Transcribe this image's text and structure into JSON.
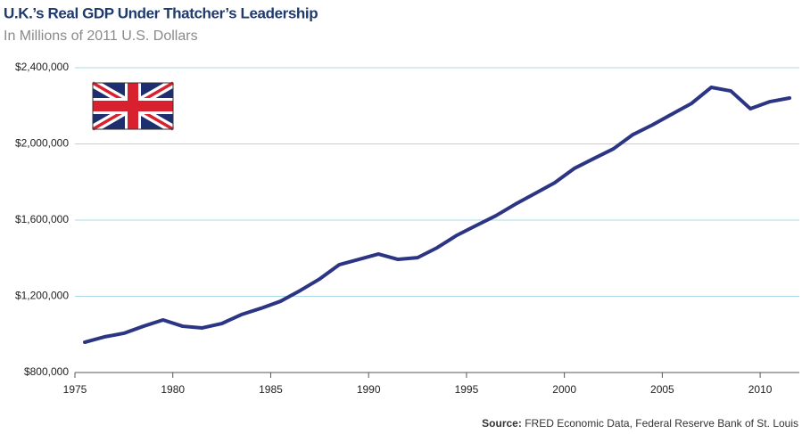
{
  "chart_data": {
    "type": "line",
    "title": "U.K.’s Real GDP Under Thatcher’s Leadership",
    "subtitle": "In Millions of 2011 U.S. Dollars",
    "source_label": "Source:",
    "source": "FRED Economic Data, Federal Reserve Bank of St. Louis",
    "x": [
      1975.5,
      1976.5,
      1977.5,
      1978.5,
      1979.5,
      1980.5,
      1981.5,
      1982.5,
      1983.5,
      1984.5,
      1985.5,
      1986.5,
      1987.5,
      1988.5,
      1989.5,
      1990.5,
      1991.5,
      1992.5,
      1993.5,
      1994.5,
      1995.5,
      1996.5,
      1997.5,
      1998.5,
      1999.5,
      2000.5,
      2001.5,
      2002.5,
      2003.5,
      2004.5,
      2005.5,
      2006.5,
      2007.5,
      2008.5,
      2009.5,
      2010.5,
      2011.5
    ],
    "series": [
      {
        "color": "#2b3584",
        "values": [
          959000,
          987000,
          1006000,
          1043000,
          1076000,
          1043000,
          1034000,
          1057000,
          1104000,
          1137000,
          1174000,
          1230000,
          1291000,
          1366000,
          1394000,
          1422000,
          1394000,
          1403000,
          1455000,
          1520000,
          1572000,
          1623000,
          1684000,
          1740000,
          1796000,
          1871000,
          1923000,
          1974000,
          2049000,
          2100000,
          2157000,
          2213000,
          2297000,
          2278000,
          2185000,
          2222000,
          2241000
        ]
      }
    ],
    "xlim": [
      1975,
      2012
    ],
    "xticks": [
      1975,
      1980,
      1985,
      1990,
      1995,
      2000,
      2005,
      2010
    ],
    "ylim": [
      800000,
      2400000
    ],
    "yticks": [
      {
        "value": 800000,
        "label": "$800,000"
      },
      {
        "value": 1200000,
        "label": "$1,200,000"
      },
      {
        "value": 1600000,
        "label": "$1,600,000"
      },
      {
        "value": 2000000,
        "label": "$2,000,000"
      },
      {
        "value": 2400000,
        "label": "$2,400,000"
      }
    ],
    "grid": true,
    "grid_color": "#a9d8e8"
  }
}
